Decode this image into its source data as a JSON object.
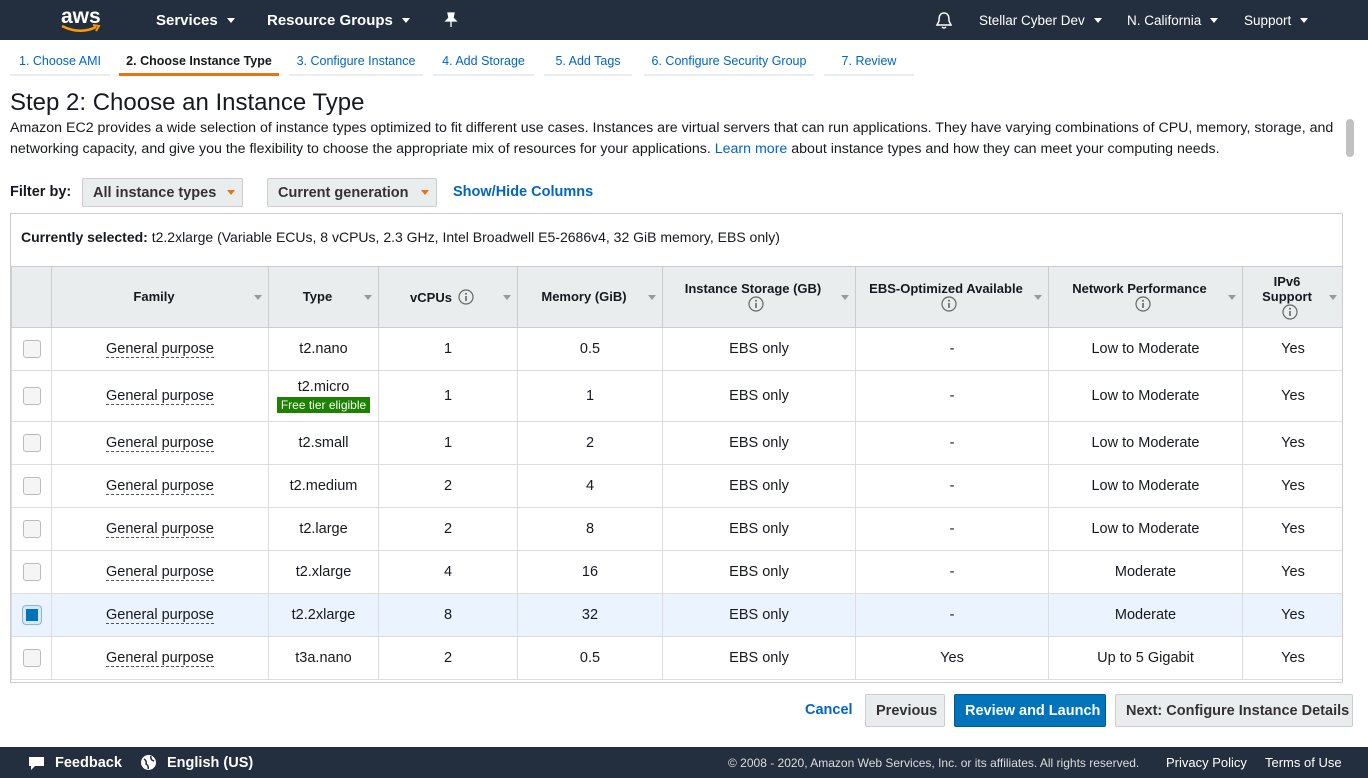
{
  "nav": {
    "logo": "aws",
    "left": [
      "Services",
      "Resource Groups"
    ],
    "right": [
      "Stellar Cyber Dev",
      "N. California",
      "Support"
    ]
  },
  "steps": {
    "items": [
      "1. Choose AMI",
      "2. Choose Instance Type",
      "3. Configure Instance",
      "4. Add Storage",
      "5. Add Tags",
      "6. Configure Security Group",
      "7. Review"
    ],
    "active": 1
  },
  "heading": {
    "title": "Step 2: Choose an Instance Type",
    "description": "Amazon EC2 provides a wide selection of instance types optimized to fit different use cases. Instances are virtual servers that can run applications. They have varying combinations of CPU, memory, storage, and networking capacity, and give you the flexibility to choose the appropriate mix of resources for your applications.",
    "link": "Learn more",
    "description_end": "about instance types and how they can meet your computing needs."
  },
  "filter": {
    "label": "Filter by:",
    "selects": [
      "All instance types",
      "Current generation"
    ],
    "link": "Show/Hide Columns"
  },
  "selection": {
    "label": "Currently selected:",
    "value": "t2.2xlarge (Variable ECUs, 8 vCPUs, 2.3 GHz, Intel Broadwell E5-2686v4, 32 GiB memory, EBS only)"
  },
  "table": {
    "columns": [
      {
        "label": "Family",
        "info": false
      },
      {
        "label": "Type",
        "info": false
      },
      {
        "label": "vCPUs",
        "info": true
      },
      {
        "label": "Memory (GiB)",
        "info": false
      },
      {
        "label": "Instance Storage (GB)",
        "info": true
      },
      {
        "label": "EBS-Optimized Available",
        "info": true
      },
      {
        "label": "Network Performance",
        "info": true
      },
      {
        "label": "IPv6 Support",
        "info": true
      }
    ],
    "rows": [
      [
        "General purpose",
        "t2.nano",
        1,
        0.5,
        "EBS only",
        "-",
        "Low to Moderate",
        "Yes"
      ],
      [
        "General purpose",
        "t2.micro",
        1,
        1,
        "EBS only",
        "-",
        "Low to Moderate",
        "Yes"
      ],
      [
        "General purpose",
        "t2.small",
        1,
        2,
        "EBS only",
        "-",
        "Low to Moderate",
        "Yes"
      ],
      [
        "General purpose",
        "t2.medium",
        2,
        4,
        "EBS only",
        "-",
        "Low to Moderate",
        "Yes"
      ],
      [
        "General purpose",
        "t2.large",
        2,
        8,
        "EBS only",
        "-",
        "Low to Moderate",
        "Yes"
      ],
      [
        "General purpose",
        "t2.xlarge",
        4,
        16,
        "EBS only",
        "-",
        "Moderate",
        "Yes"
      ],
      [
        "General purpose",
        "t2.2xlarge",
        8,
        32,
        "EBS only",
        "-",
        "Moderate",
        "Yes"
      ],
      [
        "General purpose",
        "t3a.nano",
        2,
        0.5,
        "EBS only",
        "Yes",
        "Up to 5 Gigabit",
        "Yes"
      ]
    ],
    "badge": {
      "row": 1,
      "label": "Free tier eligible"
    },
    "selected_row": 6
  },
  "buttons": [
    "Cancel",
    "Previous",
    "Review and Launch",
    "Next: Configure Instance Details"
  ],
  "footer": {
    "feedback": "Feedback",
    "language": "English (US)",
    "copyright": "© 2008 - 2020, Amazon Web Services, Inc. or its affiliates. All rights reserved.",
    "links": [
      "Privacy Policy",
      "Terms of Use"
    ]
  }
}
